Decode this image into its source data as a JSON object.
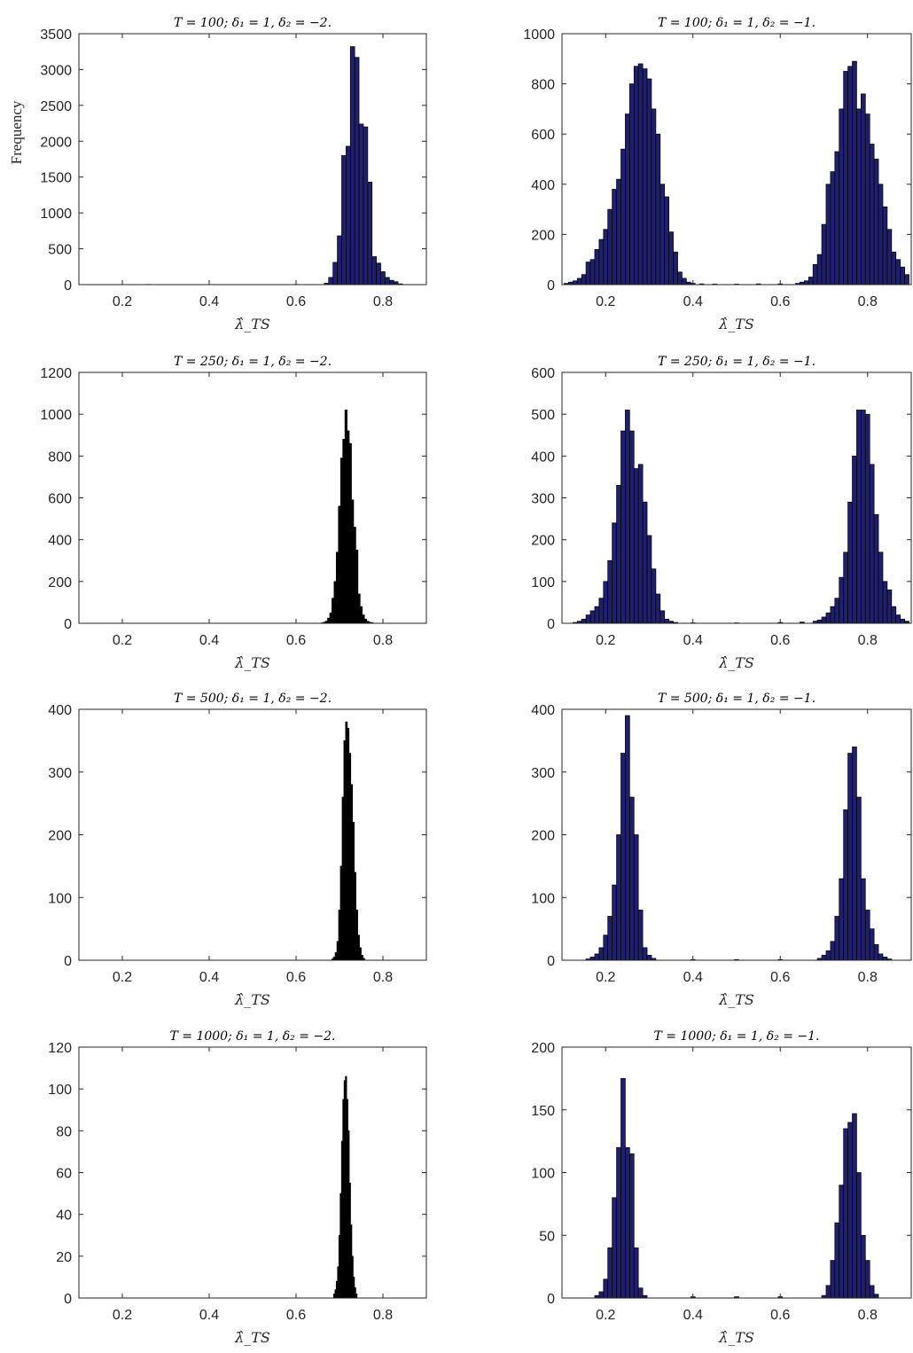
{
  "style": {
    "bar_fill": "#1f1f6b",
    "bar_stroke": "#000000",
    "axis_color": "#262626",
    "background": "#ffffff"
  },
  "chart_data": [
    {
      "type": "bar",
      "title": "T = 100; δ₁ = 1, δ₂ = −2.",
      "xlabel": "λ̂_TS",
      "ylabel": "Frequency",
      "xlim": [
        0.1,
        0.9
      ],
      "ylim": [
        0,
        3500
      ],
      "xticks": [
        "0.2",
        "0.4",
        "0.6",
        "0.8"
      ],
      "yticks": [
        "0",
        "500",
        "1000",
        "1500",
        "2000",
        "2500",
        "3000",
        "3500"
      ],
      "bin_width": 0.01,
      "bins": [
        [
          0.26,
          3
        ],
        [
          0.4,
          2
        ],
        [
          0.5,
          2
        ],
        [
          0.6,
          3
        ],
        [
          0.67,
          20
        ],
        [
          0.68,
          100
        ],
        [
          0.69,
          310
        ],
        [
          0.7,
          680
        ],
        [
          0.71,
          1800
        ],
        [
          0.72,
          1930
        ],
        [
          0.73,
          3320
        ],
        [
          0.74,
          3170
        ],
        [
          0.75,
          2240
        ],
        [
          0.76,
          2200
        ],
        [
          0.77,
          1430
        ],
        [
          0.78,
          390
        ],
        [
          0.79,
          300
        ],
        [
          0.8,
          180
        ],
        [
          0.81,
          100
        ],
        [
          0.82,
          60
        ],
        [
          0.83,
          40
        ],
        [
          0.84,
          10
        ]
      ]
    },
    {
      "type": "bar",
      "title": "T = 100; δ₁ = 1, δ₂ = −1.",
      "xlabel": "λ̂_TS",
      "ylabel": "",
      "xlim": [
        0.1,
        0.9
      ],
      "ylim": [
        0,
        1000
      ],
      "xticks": [
        "0.2",
        "0.4",
        "0.6",
        "0.8"
      ],
      "yticks": [
        "0",
        "200",
        "400",
        "600",
        "800",
        "1000"
      ],
      "bin_width": 0.01,
      "bins": [
        [
          0.11,
          5
        ],
        [
          0.12,
          10
        ],
        [
          0.13,
          15
        ],
        [
          0.14,
          25
        ],
        [
          0.15,
          40
        ],
        [
          0.16,
          90
        ],
        [
          0.17,
          100
        ],
        [
          0.18,
          140
        ],
        [
          0.19,
          180
        ],
        [
          0.2,
          220
        ],
        [
          0.21,
          300
        ],
        [
          0.22,
          380
        ],
        [
          0.23,
          420
        ],
        [
          0.24,
          540
        ],
        [
          0.25,
          680
        ],
        [
          0.26,
          800
        ],
        [
          0.27,
          870
        ],
        [
          0.28,
          880
        ],
        [
          0.29,
          860
        ],
        [
          0.3,
          820
        ],
        [
          0.31,
          700
        ],
        [
          0.32,
          600
        ],
        [
          0.33,
          400
        ],
        [
          0.34,
          350
        ],
        [
          0.35,
          210
        ],
        [
          0.36,
          130
        ],
        [
          0.37,
          50
        ],
        [
          0.38,
          25
        ],
        [
          0.39,
          10
        ],
        [
          0.4,
          5
        ],
        [
          0.42,
          3
        ],
        [
          0.45,
          2
        ],
        [
          0.5,
          2
        ],
        [
          0.55,
          3
        ],
        [
          0.6,
          3
        ],
        [
          0.64,
          5
        ],
        [
          0.65,
          10
        ],
        [
          0.66,
          15
        ],
        [
          0.67,
          30
        ],
        [
          0.68,
          80
        ],
        [
          0.69,
          120
        ],
        [
          0.7,
          240
        ],
        [
          0.71,
          400
        ],
        [
          0.72,
          450
        ],
        [
          0.73,
          530
        ],
        [
          0.74,
          700
        ],
        [
          0.75,
          850
        ],
        [
          0.76,
          870
        ],
        [
          0.77,
          890
        ],
        [
          0.78,
          700
        ],
        [
          0.79,
          760
        ],
        [
          0.8,
          680
        ],
        [
          0.81,
          560
        ],
        [
          0.82,
          500
        ],
        [
          0.83,
          400
        ],
        [
          0.84,
          310
        ],
        [
          0.85,
          220
        ],
        [
          0.86,
          130
        ],
        [
          0.87,
          100
        ],
        [
          0.88,
          70
        ],
        [
          0.89,
          40
        ]
      ]
    },
    {
      "type": "bar",
      "title": "T = 250; δ₁ = 1, δ₂ = −2.",
      "xlabel": "λ̂_TS",
      "ylabel": "",
      "xlim": [
        0.1,
        0.9
      ],
      "ylim": [
        0,
        1200
      ],
      "xticks": [
        "0.2",
        "0.4",
        "0.6",
        "0.8"
      ],
      "yticks": [
        "0",
        "200",
        "400",
        "600",
        "800",
        "1000",
        "1200"
      ],
      "bin_width": 0.005,
      "bins": [
        [
          0.66,
          2
        ],
        [
          0.665,
          5
        ],
        [
          0.67,
          10
        ],
        [
          0.675,
          25
        ],
        [
          0.68,
          50
        ],
        [
          0.685,
          120
        ],
        [
          0.69,
          200
        ],
        [
          0.695,
          340
        ],
        [
          0.7,
          560
        ],
        [
          0.705,
          790
        ],
        [
          0.71,
          880
        ],
        [
          0.715,
          1020
        ],
        [
          0.72,
          920
        ],
        [
          0.725,
          860
        ],
        [
          0.73,
          590
        ],
        [
          0.735,
          460
        ],
        [
          0.74,
          350
        ],
        [
          0.745,
          140
        ],
        [
          0.75,
          80
        ],
        [
          0.755,
          40
        ],
        [
          0.76,
          20
        ],
        [
          0.765,
          10
        ],
        [
          0.77,
          5
        ],
        [
          0.775,
          3
        ]
      ]
    },
    {
      "type": "bar",
      "title": "T = 250; δ₁ = 1, δ₂ = −1.",
      "xlabel": "λ̂_TS",
      "ylabel": "",
      "xlim": [
        0.1,
        0.9
      ],
      "ylim": [
        0,
        600
      ],
      "xticks": [
        "0.2",
        "0.4",
        "0.6",
        "0.8"
      ],
      "yticks": [
        "0",
        "100",
        "200",
        "300",
        "400",
        "500",
        "600"
      ],
      "bin_width": 0.01,
      "bins": [
        [
          0.13,
          2
        ],
        [
          0.14,
          5
        ],
        [
          0.15,
          10
        ],
        [
          0.16,
          20
        ],
        [
          0.17,
          30
        ],
        [
          0.18,
          40
        ],
        [
          0.19,
          60
        ],
        [
          0.2,
          100
        ],
        [
          0.21,
          150
        ],
        [
          0.22,
          240
        ],
        [
          0.23,
          330
        ],
        [
          0.24,
          460
        ],
        [
          0.25,
          510
        ],
        [
          0.26,
          460
        ],
        [
          0.27,
          370
        ],
        [
          0.28,
          380
        ],
        [
          0.29,
          290
        ],
        [
          0.3,
          210
        ],
        [
          0.31,
          130
        ],
        [
          0.32,
          70
        ],
        [
          0.33,
          30
        ],
        [
          0.34,
          10
        ],
        [
          0.35,
          5
        ],
        [
          0.36,
          2
        ],
        [
          0.4,
          1
        ],
        [
          0.5,
          1
        ],
        [
          0.6,
          2
        ],
        [
          0.65,
          3
        ],
        [
          0.68,
          5
        ],
        [
          0.69,
          8
        ],
        [
          0.7,
          15
        ],
        [
          0.71,
          25
        ],
        [
          0.72,
          40
        ],
        [
          0.73,
          60
        ],
        [
          0.74,
          110
        ],
        [
          0.75,
          170
        ],
        [
          0.76,
          290
        ],
        [
          0.77,
          400
        ],
        [
          0.78,
          510
        ],
        [
          0.79,
          510
        ],
        [
          0.8,
          500
        ],
        [
          0.81,
          380
        ],
        [
          0.82,
          260
        ],
        [
          0.83,
          170
        ],
        [
          0.84,
          100
        ],
        [
          0.85,
          80
        ],
        [
          0.86,
          40
        ],
        [
          0.87,
          20
        ],
        [
          0.88,
          10
        ],
        [
          0.89,
          5
        ]
      ]
    },
    {
      "type": "bar",
      "title": "T = 500; δ₁ = 1, δ₂ = −2.",
      "xlabel": "λ̂_TS",
      "ylabel": "",
      "xlim": [
        0.1,
        0.9
      ],
      "ylim": [
        0,
        400
      ],
      "xticks": [
        "0.2",
        "0.4",
        "0.6",
        "0.8"
      ],
      "yticks": [
        "0",
        "100",
        "200",
        "300",
        "400"
      ],
      "bin_width": 0.004,
      "bins": [
        [
          0.684,
          2
        ],
        [
          0.688,
          5
        ],
        [
          0.692,
          12
        ],
        [
          0.696,
          30
        ],
        [
          0.7,
          80
        ],
        [
          0.704,
          150
        ],
        [
          0.708,
          260
        ],
        [
          0.712,
          350
        ],
        [
          0.716,
          380
        ],
        [
          0.72,
          370
        ],
        [
          0.724,
          330
        ],
        [
          0.728,
          280
        ],
        [
          0.732,
          220
        ],
        [
          0.736,
          140
        ],
        [
          0.74,
          80
        ],
        [
          0.744,
          40
        ],
        [
          0.748,
          20
        ],
        [
          0.752,
          8
        ],
        [
          0.756,
          3
        ]
      ]
    },
    {
      "type": "bar",
      "title": "T = 500; δ₁ = 1, δ₂ = −1.",
      "xlabel": "λ̂_TS",
      "ylabel": "",
      "xlim": [
        0.1,
        0.9
      ],
      "ylim": [
        0,
        400
      ],
      "xticks": [
        "0.2",
        "0.4",
        "0.6",
        "0.8"
      ],
      "yticks": [
        "0",
        "100",
        "200",
        "300",
        "400"
      ],
      "bin_width": 0.01,
      "bins": [
        [
          0.16,
          2
        ],
        [
          0.17,
          5
        ],
        [
          0.18,
          10
        ],
        [
          0.19,
          20
        ],
        [
          0.2,
          40
        ],
        [
          0.21,
          70
        ],
        [
          0.22,
          120
        ],
        [
          0.23,
          200
        ],
        [
          0.24,
          330
        ],
        [
          0.25,
          390
        ],
        [
          0.26,
          260
        ],
        [
          0.27,
          200
        ],
        [
          0.28,
          80
        ],
        [
          0.29,
          20
        ],
        [
          0.3,
          8
        ],
        [
          0.31,
          3
        ],
        [
          0.4,
          1
        ],
        [
          0.5,
          1
        ],
        [
          0.6,
          1
        ],
        [
          0.69,
          3
        ],
        [
          0.7,
          8
        ],
        [
          0.71,
          15
        ],
        [
          0.72,
          30
        ],
        [
          0.73,
          70
        ],
        [
          0.74,
          130
        ],
        [
          0.75,
          240
        ],
        [
          0.76,
          330
        ],
        [
          0.77,
          340
        ],
        [
          0.78,
          260
        ],
        [
          0.79,
          130
        ],
        [
          0.8,
          80
        ],
        [
          0.81,
          50
        ],
        [
          0.82,
          25
        ],
        [
          0.83,
          10
        ],
        [
          0.84,
          5
        ],
        [
          0.85,
          2
        ]
      ]
    },
    {
      "type": "bar",
      "title": "T = 1000; δ₁ = 1, δ₂ = −2.",
      "xlabel": "λ̂_TS",
      "ylabel": "",
      "xlim": [
        0.1,
        0.9
      ],
      "ylim": [
        0,
        120
      ],
      "xticks": [
        "0.2",
        "0.4",
        "0.6",
        "0.8"
      ],
      "yticks": [
        "0",
        "20",
        "40",
        "60",
        "80",
        "100",
        "120"
      ],
      "bin_width": 0.003,
      "bins": [
        [
          0.688,
          2
        ],
        [
          0.691,
          4
        ],
        [
          0.694,
          8
        ],
        [
          0.697,
          15
        ],
        [
          0.7,
          30
        ],
        [
          0.703,
          50
        ],
        [
          0.706,
          75
        ],
        [
          0.709,
          95
        ],
        [
          0.712,
          104
        ],
        [
          0.715,
          106
        ],
        [
          0.718,
          95
        ],
        [
          0.721,
          80
        ],
        [
          0.724,
          55
        ],
        [
          0.727,
          35
        ],
        [
          0.73,
          20
        ],
        [
          0.733,
          10
        ],
        [
          0.736,
          5
        ],
        [
          0.739,
          2
        ]
      ]
    },
    {
      "type": "bar",
      "title": "T = 1000; δ₁ = 1, δ₂ = −1.",
      "xlabel": "λ̂_TS",
      "ylabel": "",
      "xlim": [
        0.1,
        0.9
      ],
      "ylim": [
        0,
        200
      ],
      "xticks": [
        "0.2",
        "0.4",
        "0.6",
        "0.8"
      ],
      "yticks": [
        "0",
        "50",
        "100",
        "150",
        "200"
      ],
      "bin_width": 0.01,
      "bins": [
        [
          0.18,
          2
        ],
        [
          0.19,
          5
        ],
        [
          0.2,
          15
        ],
        [
          0.21,
          40
        ],
        [
          0.22,
          80
        ],
        [
          0.23,
          120
        ],
        [
          0.24,
          175
        ],
        [
          0.25,
          120
        ],
        [
          0.26,
          115
        ],
        [
          0.27,
          40
        ],
        [
          0.28,
          8
        ],
        [
          0.29,
          2
        ],
        [
          0.4,
          1
        ],
        [
          0.5,
          1
        ],
        [
          0.6,
          1
        ],
        [
          0.7,
          2
        ],
        [
          0.71,
          10
        ],
        [
          0.72,
          30
        ],
        [
          0.73,
          60
        ],
        [
          0.74,
          90
        ],
        [
          0.75,
          135
        ],
        [
          0.76,
          140
        ],
        [
          0.77,
          147
        ],
        [
          0.78,
          100
        ],
        [
          0.79,
          50
        ],
        [
          0.8,
          30
        ],
        [
          0.81,
          10
        ],
        [
          0.82,
          3
        ]
      ]
    }
  ]
}
